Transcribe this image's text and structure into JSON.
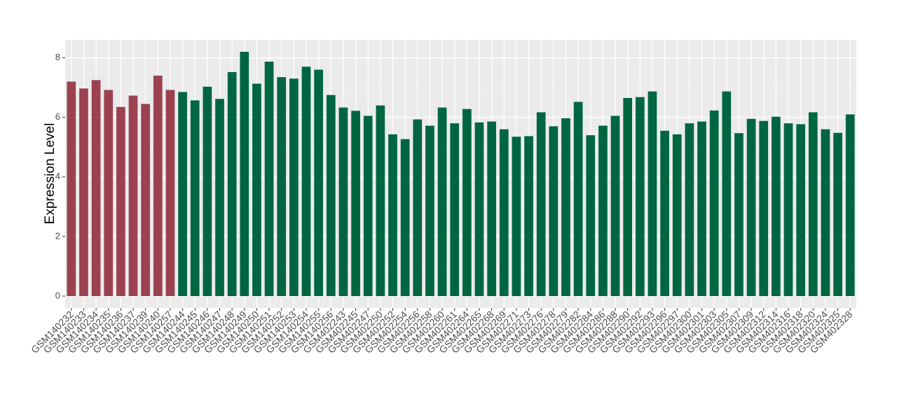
{
  "chart_data": {
    "type": "bar",
    "y_label": "Expression Level",
    "categories": [
      "GSM140232",
      "GSM140233",
      "GSM140234",
      "GSM140235",
      "GSM140236",
      "GSM140237",
      "GSM140239",
      "GSM140240",
      "GSM140257",
      "GSM140244",
      "GSM140245",
      "GSM140246",
      "GSM140247",
      "GSM140248",
      "GSM140249",
      "GSM140250",
      "GSM140251",
      "GSM140252",
      "GSM140253",
      "GSM140254",
      "GSM140255",
      "GSM140256",
      "GSM402243",
      "GSM402245",
      "GSM402247",
      "GSM402250",
      "GSM402252",
      "GSM402254",
      "GSM402256",
      "GSM402258",
      "GSM402260",
      "GSM402261",
      "GSM402264",
      "GSM402265",
      "GSM402268",
      "GSM402269",
      "GSM402271",
      "GSM402273",
      "GSM402276",
      "GSM402278",
      "GSM402279",
      "GSM402282",
      "GSM402284",
      "GSM402286",
      "GSM402288",
      "GSM402290",
      "GSM402292",
      "GSM402293",
      "GSM402296",
      "GSM402297",
      "GSM402300",
      "GSM402301",
      "GSM402303",
      "GSM402305",
      "GSM402307",
      "GSM402309",
      "GSM402312",
      "GSM402314",
      "GSM402316",
      "GSM402318",
      "GSM402320",
      "GSM402324",
      "GSM402325",
      "GSM402328"
    ],
    "values": [
      7.2,
      6.97,
      7.25,
      6.92,
      6.35,
      6.73,
      6.45,
      7.4,
      6.92,
      6.85,
      6.57,
      7.03,
      6.62,
      7.52,
      8.2,
      7.13,
      7.87,
      7.35,
      7.3,
      7.7,
      7.6,
      6.75,
      6.33,
      6.22,
      6.05,
      6.4,
      5.43,
      5.27,
      5.93,
      5.72,
      6.33,
      5.8,
      6.28,
      5.83,
      5.86,
      5.6,
      5.35,
      5.37,
      6.17,
      5.7,
      5.97,
      6.52,
      5.4,
      5.72,
      6.05,
      6.65,
      6.68,
      6.87,
      5.55,
      5.43,
      5.8,
      5.86,
      6.23,
      6.87,
      5.47,
      5.95,
      5.88,
      6.02,
      5.8,
      5.77,
      6.17,
      5.6,
      5.48,
      6.1
    ],
    "colors": [
      "#9b4150",
      "#9b4150",
      "#9b4150",
      "#9b4150",
      "#9b4150",
      "#9b4150",
      "#9b4150",
      "#9b4150",
      "#9b4150",
      "#006642",
      "#006642",
      "#006642",
      "#006642",
      "#006642",
      "#006642",
      "#006642",
      "#006642",
      "#006642",
      "#006642",
      "#006642",
      "#006642",
      "#006642",
      "#006642",
      "#006642",
      "#006642",
      "#006642",
      "#006642",
      "#006642",
      "#006642",
      "#006642",
      "#006642",
      "#006642",
      "#006642",
      "#006642",
      "#006642",
      "#006642",
      "#006642",
      "#006642",
      "#006642",
      "#006642",
      "#006642",
      "#006642",
      "#006642",
      "#006642",
      "#006642",
      "#006642",
      "#006642",
      "#006642",
      "#006642",
      "#006642",
      "#006642",
      "#006642",
      "#006642",
      "#006642",
      "#006642",
      "#006642",
      "#006642",
      "#006642",
      "#006642",
      "#006642",
      "#006642",
      "#006642",
      "#006642",
      "#006642"
    ],
    "ylim": [
      -0.4,
      8.6
    ],
    "yticks": [
      0,
      2,
      4,
      6,
      8
    ],
    "grid": true
  }
}
